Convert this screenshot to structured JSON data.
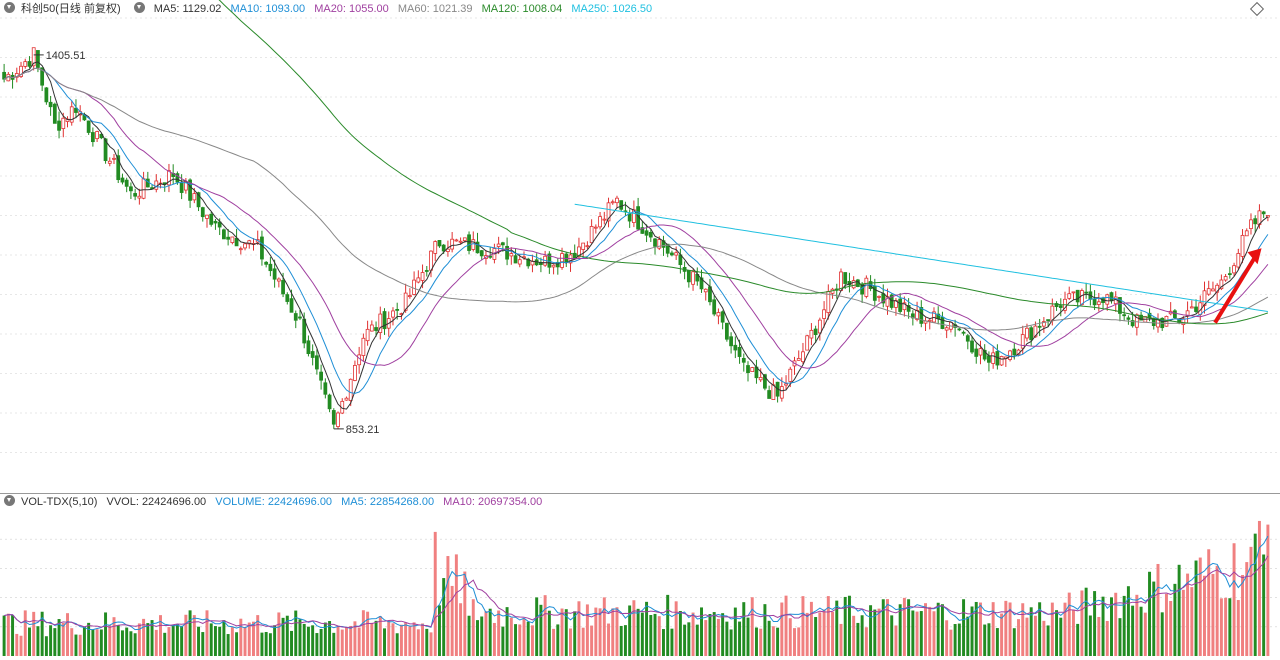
{
  "legend_main": {
    "name": "科创50(日线 前复权)",
    "items": [
      {
        "label": "MA5: 1129.02",
        "color": "#333333"
      },
      {
        "label": "MA10: 1093.00",
        "color": "#1f8fd6"
      },
      {
        "label": "MA20: 1055.00",
        "color": "#a040a0"
      },
      {
        "label": "MA60: 1021.39",
        "color": "#888888"
      },
      {
        "label": "MA120: 1008.04",
        "color": "#2a8a2a"
      },
      {
        "label": "MA250: 1026.50",
        "color": "#20c0e0"
      }
    ]
  },
  "legend_vol": {
    "name": "VOL-TDX(5,10)",
    "items": [
      {
        "label": "VVOL: 22424696.00",
        "color": "#333333"
      },
      {
        "label": "VOLUME: 22424696.00",
        "color": "#1f8fd6"
      },
      {
        "label": "MA5: 22854268.00",
        "color": "#1f8fd6"
      },
      {
        "label": "MA10: 20697354.00",
        "color": "#a040a0"
      }
    ]
  },
  "annotations": {
    "high": "1405.51",
    "low": "853.21"
  },
  "colors": {
    "up": "#e03030",
    "down": "#228b22",
    "grid": "#d0d0d0",
    "arrow": "#e81010"
  },
  "chart_data": {
    "type": "candlestick",
    "price_range": [
      760,
      1460
    ],
    "volume_range": [
      0,
      40000000
    ],
    "bar_count": 300,
    "anchors": [
      {
        "bar": 0,
        "price": 1370
      },
      {
        "bar": 7,
        "price": 1405.51
      },
      {
        "bar": 12,
        "price": 1300
      },
      {
        "bar": 17,
        "price": 1330
      },
      {
        "bar": 30,
        "price": 1200
      },
      {
        "bar": 40,
        "price": 1230
      },
      {
        "bar": 50,
        "price": 1150
      },
      {
        "bar": 60,
        "price": 1120
      },
      {
        "bar": 70,
        "price": 1010
      },
      {
        "bar": 78,
        "price": 853.21
      },
      {
        "bar": 85,
        "price": 990
      },
      {
        "bar": 95,
        "price": 1040
      },
      {
        "bar": 103,
        "price": 1130
      },
      {
        "bar": 115,
        "price": 1120
      },
      {
        "bar": 128,
        "price": 1100
      },
      {
        "bar": 135,
        "price": 1115
      },
      {
        "bar": 145,
        "price": 1190
      },
      {
        "bar": 155,
        "price": 1130
      },
      {
        "bar": 165,
        "price": 1060
      },
      {
        "bar": 175,
        "price": 940
      },
      {
        "bar": 183,
        "price": 900
      },
      {
        "bar": 190,
        "price": 980
      },
      {
        "bar": 198,
        "price": 1080
      },
      {
        "bar": 205,
        "price": 1060
      },
      {
        "bar": 215,
        "price": 1020
      },
      {
        "bar": 225,
        "price": 1010
      },
      {
        "bar": 233,
        "price": 950
      },
      {
        "bar": 240,
        "price": 980
      },
      {
        "bar": 250,
        "price": 1040
      },
      {
        "bar": 260,
        "price": 1050
      },
      {
        "bar": 268,
        "price": 1010
      },
      {
        "bar": 278,
        "price": 1015
      },
      {
        "bar": 288,
        "price": 1070
      },
      {
        "bar": 295,
        "price": 1150
      },
      {
        "bar": 299,
        "price": 1180
      }
    ],
    "ma120_visible": true,
    "ma250_start_bar": 135,
    "ma250_start": 1185,
    "ma250_end": 1026.5
  }
}
